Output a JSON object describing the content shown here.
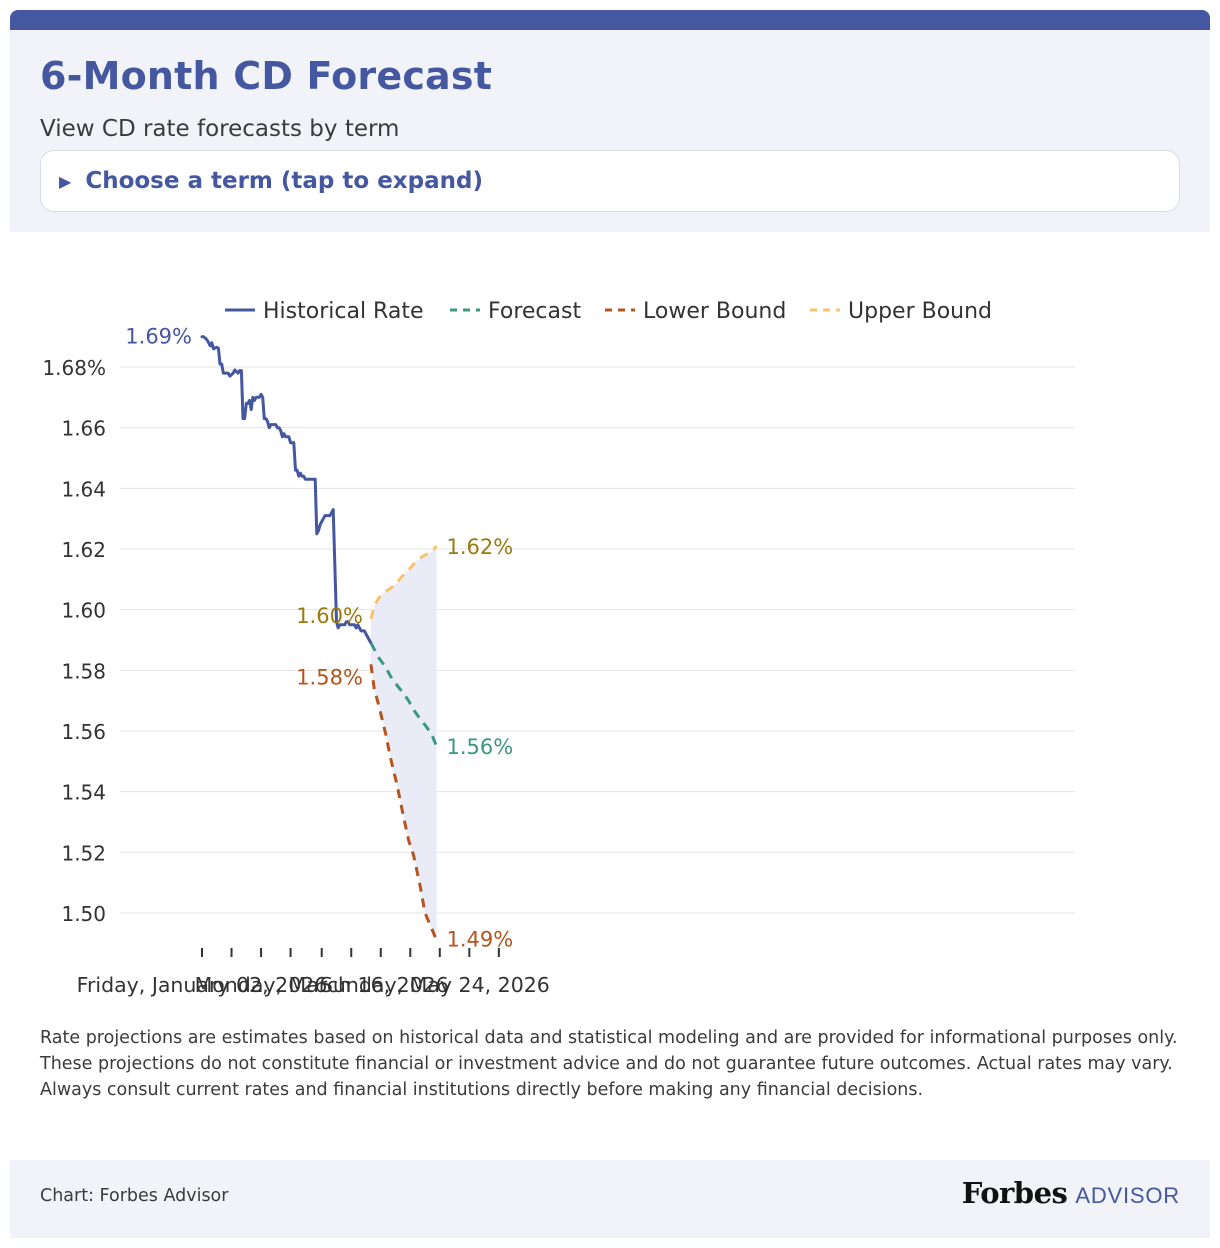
{
  "header": {
    "title": "6-Month CD Forecast",
    "subtitle": "View CD rate forecasts by term",
    "term_selector": "Choose a term (tap to expand)"
  },
  "colors": {
    "brand": "#4557a0",
    "historical": "#4557a0",
    "forecast": "#3a9882",
    "lower": "#b5541c",
    "upper": "#f7c46c",
    "band": "#e9ebf7",
    "grid": "#e4e4e4"
  },
  "chart_data": {
    "type": "line",
    "title": "",
    "xlabel": "",
    "ylabel": "",
    "ylim": [
      1.49,
      1.7
    ],
    "y_ticks": [
      "1.68%",
      "1.66",
      "1.64",
      "1.62",
      "1.60",
      "1.58",
      "1.56",
      "1.54",
      "1.52",
      "1.50"
    ],
    "y_tick_values": [
      1.68,
      1.66,
      1.64,
      1.62,
      1.6,
      1.58,
      1.56,
      1.54,
      1.52,
      1.5
    ],
    "x_tick_labels": [
      "Friday, January 02, 2026",
      "Monday, March 16, 2026",
      "Sunday, May 24, 2026"
    ],
    "x_tick_dates": [
      "2026-01-02",
      "2026-03-16",
      "2026-05-24"
    ],
    "x_ticks": [
      "2026-01-02",
      "2026-01-20",
      "2026-02-07",
      "2026-02-25",
      "2026-03-16",
      "2026-04-03",
      "2026-04-21",
      "2026-05-09",
      "2026-05-27",
      "2026-06-14",
      "2026-07-02"
    ],
    "grid": "horizontal",
    "legend_position": "top",
    "series": [
      {
        "name": "Historical Rate",
        "style": "solid",
        "end_label": "1.69%",
        "points": [
          [
            "2026-01-02",
            1.69
          ],
          [
            "2026-01-03",
            1.69
          ],
          [
            "2026-01-05",
            1.689
          ],
          [
            "2026-01-06",
            1.688
          ],
          [
            "2026-01-07",
            1.687
          ],
          [
            "2026-01-08",
            1.688
          ],
          [
            "2026-01-09",
            1.686
          ],
          [
            "2026-01-11",
            1.6865
          ],
          [
            "2026-01-12",
            1.6862
          ],
          [
            "2026-01-13",
            1.681
          ],
          [
            "2026-01-14",
            1.681
          ],
          [
            "2026-01-15",
            1.678
          ],
          [
            "2026-01-18",
            1.678
          ],
          [
            "2026-01-19",
            1.677
          ],
          [
            "2026-01-21",
            1.678
          ],
          [
            "2026-01-22",
            1.679
          ],
          [
            "2026-01-24",
            1.678
          ],
          [
            "2026-01-25",
            1.6788
          ],
          [
            "2026-01-26",
            1.6788
          ],
          [
            "2026-01-27",
            1.663
          ],
          [
            "2026-01-28",
            1.663
          ],
          [
            "2026-01-29",
            1.668
          ],
          [
            "2026-01-30",
            1.668
          ],
          [
            "2026-01-31",
            1.669
          ],
          [
            "2026-02-01",
            1.666
          ],
          [
            "2026-02-02",
            1.67
          ],
          [
            "2026-02-03",
            1.669
          ],
          [
            "2026-02-04",
            1.67
          ],
          [
            "2026-02-06",
            1.67
          ],
          [
            "2026-02-07",
            1.671
          ],
          [
            "2026-02-08",
            1.67
          ],
          [
            "2026-02-09",
            1.663
          ],
          [
            "2026-02-10",
            1.663
          ],
          [
            "2026-02-11",
            1.662
          ],
          [
            "2026-02-12",
            1.66
          ],
          [
            "2026-02-13",
            1.661
          ],
          [
            "2026-02-16",
            1.661
          ],
          [
            "2026-02-17",
            1.66
          ],
          [
            "2026-02-18",
            1.66
          ],
          [
            "2026-02-19",
            1.659
          ],
          [
            "2026-02-20",
            1.657
          ],
          [
            "2026-02-21",
            1.658
          ],
          [
            "2026-02-22",
            1.657
          ],
          [
            "2026-02-24",
            1.657
          ],
          [
            "2026-02-25",
            1.655
          ],
          [
            "2026-02-27",
            1.655
          ],
          [
            "2026-02-28",
            1.646
          ],
          [
            "2026-03-01",
            1.646
          ],
          [
            "2026-03-02",
            1.644
          ],
          [
            "2026-03-03",
            1.645
          ],
          [
            "2026-03-04",
            1.644
          ],
          [
            "2026-03-05",
            1.644
          ],
          [
            "2026-03-06",
            1.643
          ],
          [
            "2026-03-12",
            1.643
          ],
          [
            "2026-03-13",
            1.625
          ],
          [
            "2026-03-14",
            1.626
          ],
          [
            "2026-03-15",
            1.628
          ],
          [
            "2026-03-18",
            1.631
          ],
          [
            "2026-03-21",
            1.631
          ],
          [
            "2026-03-22",
            1.632
          ],
          [
            "2026-03-23",
            1.633
          ],
          [
            "2026-03-25",
            1.596
          ],
          [
            "2026-03-26",
            1.594
          ],
          [
            "2026-03-27",
            1.595
          ],
          [
            "2026-03-30",
            1.595
          ],
          [
            "2026-03-31",
            1.596
          ],
          [
            "2026-04-01",
            1.596
          ],
          [
            "2026-04-02",
            1.595
          ],
          [
            "2026-04-05",
            1.595
          ],
          [
            "2026-04-06",
            1.594
          ],
          [
            "2026-04-07",
            1.595
          ],
          [
            "2026-04-08",
            1.594
          ],
          [
            "2026-04-09",
            1.593
          ],
          [
            "2026-04-11",
            1.593
          ],
          [
            "2026-04-13",
            1.591
          ],
          [
            "2026-04-15",
            1.589
          ]
        ]
      },
      {
        "name": "Forecast",
        "style": "dashed",
        "end_label": "1.56%",
        "points": [
          [
            "2026-04-15",
            1.589
          ],
          [
            "2026-04-17",
            1.587
          ],
          [
            "2026-04-20",
            1.584
          ],
          [
            "2026-04-24",
            1.581
          ],
          [
            "2026-04-27",
            1.578
          ],
          [
            "2026-05-01",
            1.575
          ],
          [
            "2026-05-04",
            1.573
          ],
          [
            "2026-05-08",
            1.57
          ],
          [
            "2026-05-11",
            1.567
          ],
          [
            "2026-05-15",
            1.564
          ],
          [
            "2026-05-18",
            1.562
          ],
          [
            "2026-05-22",
            1.559
          ],
          [
            "2026-05-25",
            1.555
          ]
        ]
      },
      {
        "name": "Lower Bound",
        "style": "dashed",
        "start_label": "1.58%",
        "end_label": "1.49%",
        "points": [
          [
            "2026-04-15",
            1.582
          ],
          [
            "2026-04-17",
            1.574
          ],
          [
            "2026-04-20",
            1.568
          ],
          [
            "2026-04-24",
            1.559
          ],
          [
            "2026-04-27",
            1.551
          ],
          [
            "2026-05-01",
            1.542
          ],
          [
            "2026-05-04",
            1.534
          ],
          [
            "2026-05-08",
            1.524
          ],
          [
            "2026-05-11",
            1.519
          ],
          [
            "2026-05-15",
            1.509
          ],
          [
            "2026-05-18",
            1.5
          ],
          [
            "2026-05-22",
            1.495
          ],
          [
            "2026-05-25",
            1.491
          ]
        ]
      },
      {
        "name": "Upper Bound",
        "style": "dashed",
        "start_label": "1.60%",
        "end_label": "1.62%",
        "points": [
          [
            "2026-04-15",
            1.597
          ],
          [
            "2026-04-17",
            1.601
          ],
          [
            "2026-04-20",
            1.604
          ],
          [
            "2026-04-24",
            1.606
          ],
          [
            "2026-04-27",
            1.607
          ],
          [
            "2026-05-01",
            1.609
          ],
          [
            "2026-05-04",
            1.611
          ],
          [
            "2026-05-08",
            1.613
          ],
          [
            "2026-05-11",
            1.615
          ],
          [
            "2026-05-15",
            1.617
          ],
          [
            "2026-05-18",
            1.618
          ],
          [
            "2026-05-22",
            1.619
          ],
          [
            "2026-05-25",
            1.621
          ]
        ]
      }
    ]
  },
  "disclaimer": "Rate projections are estimates based on historical data and statistical modeling and are provided for informational purposes only. These projections do not constitute financial or investment advice and do not guarantee future outcomes. Actual rates may vary. Always consult current rates and financial institutions directly before making any financial decisions.",
  "footer": {
    "credit": "Chart: Forbes Advisor",
    "brand_name": "Forbes",
    "brand_suffix": "ADVISOR"
  }
}
